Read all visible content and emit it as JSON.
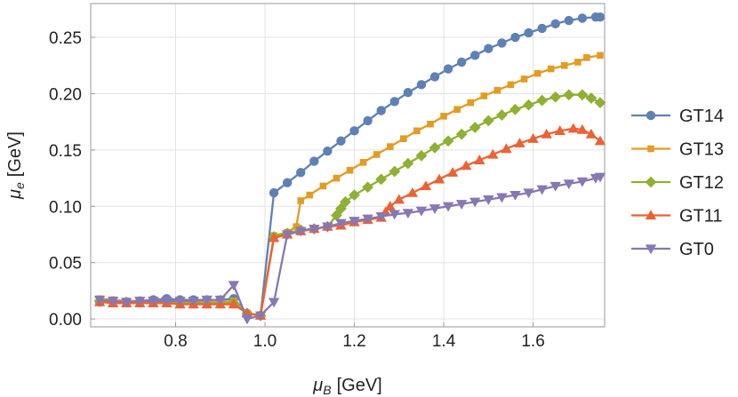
{
  "chart_data": {
    "type": "line",
    "title": "",
    "xlabel_main": "μ",
    "xlabel_sub": "B",
    "xlabel_unit": "[GeV]",
    "ylabel_main": "μ",
    "ylabel_sub": "e",
    "ylabel_unit": "[GeV]",
    "xlim": [
      0.61,
      1.76
    ],
    "ylim": [
      -0.007,
      0.28
    ],
    "x_ticks": [
      0.8,
      1.0,
      1.2,
      1.4,
      1.6
    ],
    "x_tick_labels": [
      "0.8",
      "1.0",
      "1.2",
      "1.4",
      "1.6"
    ],
    "y_ticks": [
      0.0,
      0.05,
      0.1,
      0.15,
      0.2,
      0.25
    ],
    "y_tick_labels": [
      "0.00",
      "0.05",
      "0.10",
      "0.15",
      "0.20",
      "0.25"
    ],
    "grid": true,
    "legend_position": "right",
    "series": [
      {
        "name": "GT14",
        "color": "#5e81b5",
        "marker": "circle",
        "points": [
          [
            0.63,
            0.015
          ],
          [
            0.66,
            0.016
          ],
          [
            0.69,
            0.015
          ],
          [
            0.72,
            0.016
          ],
          [
            0.75,
            0.017
          ],
          [
            0.78,
            0.018
          ],
          [
            0.81,
            0.017
          ],
          [
            0.84,
            0.017
          ],
          [
            0.87,
            0.017
          ],
          [
            0.9,
            0.017
          ],
          [
            0.93,
            0.018
          ],
          [
            0.96,
            0.005
          ],
          [
            0.99,
            0.003
          ],
          [
            1.02,
            0.112
          ],
          [
            1.05,
            0.121
          ],
          [
            1.08,
            0.13
          ],
          [
            1.11,
            0.14
          ],
          [
            1.14,
            0.149
          ],
          [
            1.17,
            0.158
          ],
          [
            1.2,
            0.167
          ],
          [
            1.23,
            0.176
          ],
          [
            1.26,
            0.185
          ],
          [
            1.29,
            0.193
          ],
          [
            1.32,
            0.201
          ],
          [
            1.35,
            0.208
          ],
          [
            1.38,
            0.215
          ],
          [
            1.41,
            0.222
          ],
          [
            1.44,
            0.228
          ],
          [
            1.47,
            0.234
          ],
          [
            1.5,
            0.24
          ],
          [
            1.53,
            0.245
          ],
          [
            1.56,
            0.25
          ],
          [
            1.59,
            0.254
          ],
          [
            1.62,
            0.258
          ],
          [
            1.65,
            0.262
          ],
          [
            1.68,
            0.265
          ],
          [
            1.71,
            0.267
          ],
          [
            1.74,
            0.268
          ],
          [
            1.75,
            0.268
          ]
        ]
      },
      {
        "name": "GT13",
        "color": "#e19c24",
        "marker": "square",
        "points": [
          [
            0.63,
            0.018
          ],
          [
            0.66,
            0.017
          ],
          [
            0.69,
            0.016
          ],
          [
            0.72,
            0.016
          ],
          [
            0.75,
            0.016
          ],
          [
            0.78,
            0.016
          ],
          [
            0.81,
            0.015
          ],
          [
            0.84,
            0.015
          ],
          [
            0.87,
            0.015
          ],
          [
            0.9,
            0.015
          ],
          [
            0.93,
            0.016
          ],
          [
            0.96,
            0.005
          ],
          [
            0.99,
            0.003
          ],
          [
            1.02,
            0.074
          ],
          [
            1.05,
            0.077
          ],
          [
            1.07,
            0.082
          ],
          [
            1.08,
            0.105
          ],
          [
            1.1,
            0.11
          ],
          [
            1.13,
            0.118
          ],
          [
            1.16,
            0.125
          ],
          [
            1.19,
            0.132
          ],
          [
            1.22,
            0.139
          ],
          [
            1.25,
            0.146
          ],
          [
            1.28,
            0.153
          ],
          [
            1.31,
            0.16
          ],
          [
            1.34,
            0.167
          ],
          [
            1.37,
            0.173
          ],
          [
            1.4,
            0.18
          ],
          [
            1.43,
            0.186
          ],
          [
            1.46,
            0.192
          ],
          [
            1.49,
            0.198
          ],
          [
            1.52,
            0.203
          ],
          [
            1.55,
            0.208
          ],
          [
            1.58,
            0.213
          ],
          [
            1.61,
            0.218
          ],
          [
            1.64,
            0.222
          ],
          [
            1.67,
            0.225
          ],
          [
            1.7,
            0.228
          ],
          [
            1.72,
            0.232
          ],
          [
            1.75,
            0.234
          ]
        ]
      },
      {
        "name": "GT12",
        "color": "#8fb032",
        "marker": "diamond",
        "points": [
          [
            0.63,
            0.016
          ],
          [
            0.66,
            0.015
          ],
          [
            0.69,
            0.015
          ],
          [
            0.72,
            0.015
          ],
          [
            0.75,
            0.015
          ],
          [
            0.78,
            0.015
          ],
          [
            0.81,
            0.014
          ],
          [
            0.84,
            0.014
          ],
          [
            0.87,
            0.014
          ],
          [
            0.9,
            0.014
          ],
          [
            0.93,
            0.014
          ],
          [
            0.96,
            0.005
          ],
          [
            0.99,
            0.003
          ],
          [
            1.02,
            0.073
          ],
          [
            1.05,
            0.076
          ],
          [
            1.08,
            0.079
          ],
          [
            1.11,
            0.08
          ],
          [
            1.14,
            0.082
          ],
          [
            1.16,
            0.092
          ],
          [
            1.17,
            0.098
          ],
          [
            1.18,
            0.104
          ],
          [
            1.2,
            0.11
          ],
          [
            1.23,
            0.117
          ],
          [
            1.26,
            0.124
          ],
          [
            1.29,
            0.131
          ],
          [
            1.32,
            0.138
          ],
          [
            1.35,
            0.145
          ],
          [
            1.38,
            0.152
          ],
          [
            1.41,
            0.158
          ],
          [
            1.44,
            0.164
          ],
          [
            1.47,
            0.17
          ],
          [
            1.5,
            0.176
          ],
          [
            1.53,
            0.181
          ],
          [
            1.56,
            0.186
          ],
          [
            1.59,
            0.19
          ],
          [
            1.62,
            0.194
          ],
          [
            1.65,
            0.197
          ],
          [
            1.68,
            0.199
          ],
          [
            1.71,
            0.199
          ],
          [
            1.73,
            0.196
          ],
          [
            1.75,
            0.192
          ]
        ]
      },
      {
        "name": "GT11",
        "color": "#eb6235",
        "marker": "triangle-up",
        "points": [
          [
            0.63,
            0.015
          ],
          [
            0.66,
            0.014
          ],
          [
            0.69,
            0.014
          ],
          [
            0.72,
            0.014
          ],
          [
            0.75,
            0.014
          ],
          [
            0.78,
            0.014
          ],
          [
            0.81,
            0.013
          ],
          [
            0.84,
            0.013
          ],
          [
            0.87,
            0.013
          ],
          [
            0.9,
            0.013
          ],
          [
            0.93,
            0.013
          ],
          [
            0.96,
            0.005
          ],
          [
            0.99,
            0.003
          ],
          [
            1.02,
            0.072
          ],
          [
            1.05,
            0.075
          ],
          [
            1.08,
            0.078
          ],
          [
            1.11,
            0.08
          ],
          [
            1.14,
            0.082
          ],
          [
            1.17,
            0.083
          ],
          [
            1.2,
            0.086
          ],
          [
            1.23,
            0.088
          ],
          [
            1.26,
            0.09
          ],
          [
            1.27,
            0.095
          ],
          [
            1.28,
            0.1
          ],
          [
            1.3,
            0.106
          ],
          [
            1.33,
            0.112
          ],
          [
            1.36,
            0.118
          ],
          [
            1.39,
            0.124
          ],
          [
            1.42,
            0.13
          ],
          [
            1.45,
            0.136
          ],
          [
            1.48,
            0.141
          ],
          [
            1.51,
            0.146
          ],
          [
            1.54,
            0.151
          ],
          [
            1.57,
            0.156
          ],
          [
            1.6,
            0.16
          ],
          [
            1.63,
            0.164
          ],
          [
            1.66,
            0.167
          ],
          [
            1.69,
            0.169
          ],
          [
            1.71,
            0.168
          ],
          [
            1.73,
            0.164
          ],
          [
            1.75,
            0.158
          ]
        ]
      },
      {
        "name": "GT0",
        "color": "#8778b3",
        "marker": "triangle-down",
        "points": [
          [
            0.63,
            0.017
          ],
          [
            0.66,
            0.016
          ],
          [
            0.69,
            0.015
          ],
          [
            0.72,
            0.016
          ],
          [
            0.75,
            0.016
          ],
          [
            0.78,
            0.016
          ],
          [
            0.81,
            0.016
          ],
          [
            0.84,
            0.016
          ],
          [
            0.87,
            0.017
          ],
          [
            0.9,
            0.017
          ],
          [
            0.93,
            0.03
          ],
          [
            0.96,
            0.0
          ],
          [
            0.99,
            0.003
          ],
          [
            1.02,
            0.015
          ],
          [
            1.05,
            0.075
          ],
          [
            1.08,
            0.078
          ],
          [
            1.11,
            0.08
          ],
          [
            1.14,
            0.082
          ],
          [
            1.17,
            0.085
          ],
          [
            1.2,
            0.087
          ],
          [
            1.23,
            0.089
          ],
          [
            1.26,
            0.091
          ],
          [
            1.29,
            0.093
          ],
          [
            1.32,
            0.094
          ],
          [
            1.35,
            0.096
          ],
          [
            1.38,
            0.098
          ],
          [
            1.41,
            0.1
          ],
          [
            1.44,
            0.102
          ],
          [
            1.47,
            0.104
          ],
          [
            1.5,
            0.106
          ],
          [
            1.53,
            0.108
          ],
          [
            1.56,
            0.11
          ],
          [
            1.59,
            0.112
          ],
          [
            1.62,
            0.115
          ],
          [
            1.65,
            0.118
          ],
          [
            1.68,
            0.12
          ],
          [
            1.71,
            0.122
          ],
          [
            1.74,
            0.125
          ],
          [
            1.75,
            0.126
          ]
        ]
      }
    ]
  }
}
